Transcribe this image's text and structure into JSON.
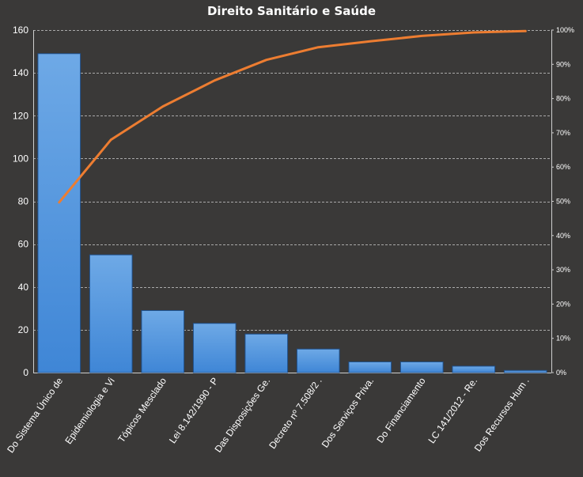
{
  "chart_data": {
    "type": "bar",
    "title": "Direito Sanitário  e Saúde",
    "categories": [
      "Do Sistema Único de",
      "Epidemiologia e Vi",
      "Tópicos Mesclado",
      "Lei 8.142/1990  - P",
      "Das Disposições Ge.",
      "Decreto nº 7.508/2 .",
      "Dos Serviços Priva.",
      "Do Financiamento",
      "LC 141/2012 - Re.",
      "Dos Recursos Hum ."
    ],
    "series": [
      {
        "type": "bar",
        "axis": "left",
        "color": "#4a8fdc",
        "values": [
          149,
          55,
          29,
          23,
          18,
          11,
          5,
          5,
          3,
          1
        ]
      },
      {
        "type": "line",
        "axis": "right",
        "color": "#ed7d31",
        "values": [
          49.7,
          68.0,
          77.7,
          85.3,
          91.3,
          95.0,
          96.7,
          98.3,
          99.3,
          99.7
        ]
      }
    ],
    "y_left": {
      "min": 0,
      "max": 160,
      "step": 20,
      "ticks": [
        "0",
        "20",
        "40",
        "60",
        "80",
        "100",
        "120",
        "140",
        "160"
      ]
    },
    "y_right": {
      "min": 0,
      "max": 100,
      "step": 10,
      "ticks": [
        "0%",
        "10%",
        "20%",
        "30%",
        "40%",
        "50%",
        "60%",
        "70%",
        "80%",
        "90%",
        "100%"
      ]
    },
    "grid": true,
    "legend": "none",
    "colors": {
      "background": "#3a3938",
      "grid": "#cfcfcf",
      "axis_text": "#ffffff",
      "bar": "#4a8fdc",
      "line": "#ed7d31"
    }
  }
}
